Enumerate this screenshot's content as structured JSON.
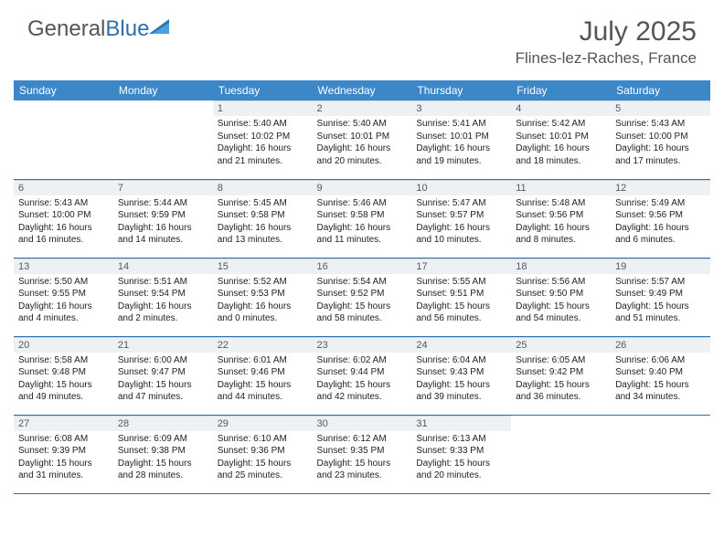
{
  "logo": {
    "part1": "General",
    "part2": "Blue"
  },
  "title": "July 2025",
  "location": "Flines-lez-Raches, France",
  "colors": {
    "header_bg": "#3b87c8",
    "daynum_bg": "#eef1f4",
    "row_border": "#2b6fb0",
    "text": "#222222"
  },
  "day_headers": [
    "Sunday",
    "Monday",
    "Tuesday",
    "Wednesday",
    "Thursday",
    "Friday",
    "Saturday"
  ],
  "weeks": [
    [
      null,
      null,
      {
        "n": "1",
        "sr": "5:40 AM",
        "ss": "10:02 PM",
        "dl": "16 hours and 21 minutes."
      },
      {
        "n": "2",
        "sr": "5:40 AM",
        "ss": "10:01 PM",
        "dl": "16 hours and 20 minutes."
      },
      {
        "n": "3",
        "sr": "5:41 AM",
        "ss": "10:01 PM",
        "dl": "16 hours and 19 minutes."
      },
      {
        "n": "4",
        "sr": "5:42 AM",
        "ss": "10:01 PM",
        "dl": "16 hours and 18 minutes."
      },
      {
        "n": "5",
        "sr": "5:43 AM",
        "ss": "10:00 PM",
        "dl": "16 hours and 17 minutes."
      }
    ],
    [
      {
        "n": "6",
        "sr": "5:43 AM",
        "ss": "10:00 PM",
        "dl": "16 hours and 16 minutes."
      },
      {
        "n": "7",
        "sr": "5:44 AM",
        "ss": "9:59 PM",
        "dl": "16 hours and 14 minutes."
      },
      {
        "n": "8",
        "sr": "5:45 AM",
        "ss": "9:58 PM",
        "dl": "16 hours and 13 minutes."
      },
      {
        "n": "9",
        "sr": "5:46 AM",
        "ss": "9:58 PM",
        "dl": "16 hours and 11 minutes."
      },
      {
        "n": "10",
        "sr": "5:47 AM",
        "ss": "9:57 PM",
        "dl": "16 hours and 10 minutes."
      },
      {
        "n": "11",
        "sr": "5:48 AM",
        "ss": "9:56 PM",
        "dl": "16 hours and 8 minutes."
      },
      {
        "n": "12",
        "sr": "5:49 AM",
        "ss": "9:56 PM",
        "dl": "16 hours and 6 minutes."
      }
    ],
    [
      {
        "n": "13",
        "sr": "5:50 AM",
        "ss": "9:55 PM",
        "dl": "16 hours and 4 minutes."
      },
      {
        "n": "14",
        "sr": "5:51 AM",
        "ss": "9:54 PM",
        "dl": "16 hours and 2 minutes."
      },
      {
        "n": "15",
        "sr": "5:52 AM",
        "ss": "9:53 PM",
        "dl": "16 hours and 0 minutes."
      },
      {
        "n": "16",
        "sr": "5:54 AM",
        "ss": "9:52 PM",
        "dl": "15 hours and 58 minutes."
      },
      {
        "n": "17",
        "sr": "5:55 AM",
        "ss": "9:51 PM",
        "dl": "15 hours and 56 minutes."
      },
      {
        "n": "18",
        "sr": "5:56 AM",
        "ss": "9:50 PM",
        "dl": "15 hours and 54 minutes."
      },
      {
        "n": "19",
        "sr": "5:57 AM",
        "ss": "9:49 PM",
        "dl": "15 hours and 51 minutes."
      }
    ],
    [
      {
        "n": "20",
        "sr": "5:58 AM",
        "ss": "9:48 PM",
        "dl": "15 hours and 49 minutes."
      },
      {
        "n": "21",
        "sr": "6:00 AM",
        "ss": "9:47 PM",
        "dl": "15 hours and 47 minutes."
      },
      {
        "n": "22",
        "sr": "6:01 AM",
        "ss": "9:46 PM",
        "dl": "15 hours and 44 minutes."
      },
      {
        "n": "23",
        "sr": "6:02 AM",
        "ss": "9:44 PM",
        "dl": "15 hours and 42 minutes."
      },
      {
        "n": "24",
        "sr": "6:04 AM",
        "ss": "9:43 PM",
        "dl": "15 hours and 39 minutes."
      },
      {
        "n": "25",
        "sr": "6:05 AM",
        "ss": "9:42 PM",
        "dl": "15 hours and 36 minutes."
      },
      {
        "n": "26",
        "sr": "6:06 AM",
        "ss": "9:40 PM",
        "dl": "15 hours and 34 minutes."
      }
    ],
    [
      {
        "n": "27",
        "sr": "6:08 AM",
        "ss": "9:39 PM",
        "dl": "15 hours and 31 minutes."
      },
      {
        "n": "28",
        "sr": "6:09 AM",
        "ss": "9:38 PM",
        "dl": "15 hours and 28 minutes."
      },
      {
        "n": "29",
        "sr": "6:10 AM",
        "ss": "9:36 PM",
        "dl": "15 hours and 25 minutes."
      },
      {
        "n": "30",
        "sr": "6:12 AM",
        "ss": "9:35 PM",
        "dl": "15 hours and 23 minutes."
      },
      {
        "n": "31",
        "sr": "6:13 AM",
        "ss": "9:33 PM",
        "dl": "15 hours and 20 minutes."
      },
      null,
      null
    ]
  ],
  "labels": {
    "sunrise": "Sunrise: ",
    "sunset": "Sunset: ",
    "daylight": "Daylight: "
  }
}
